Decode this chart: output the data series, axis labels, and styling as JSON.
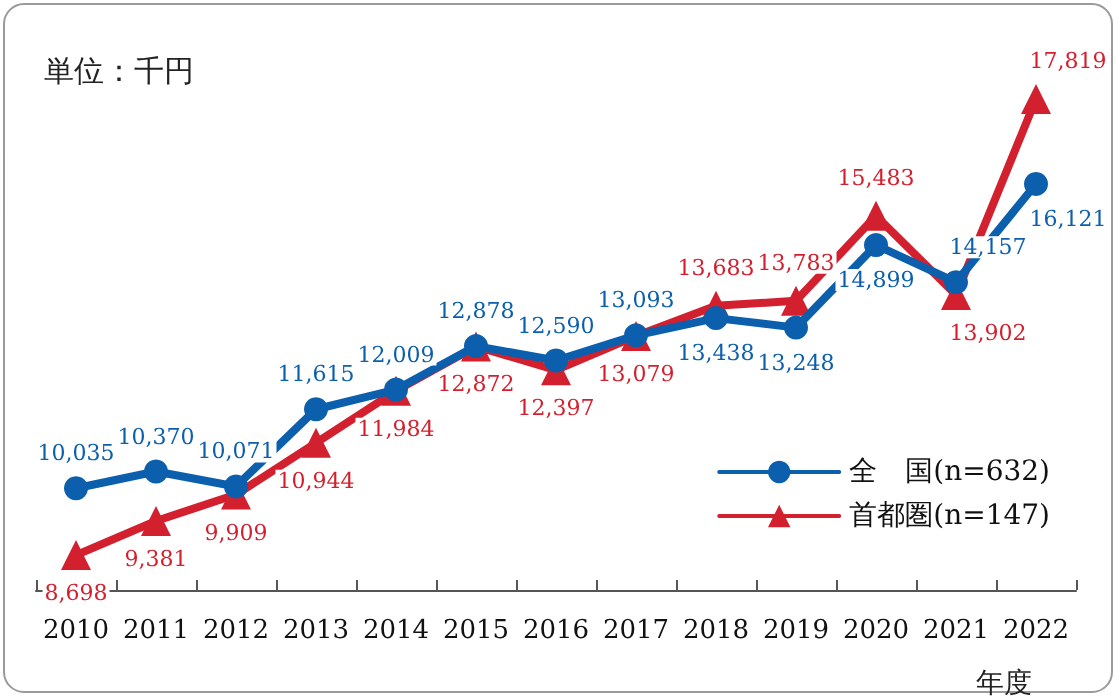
{
  "chart_data": {
    "type": "line",
    "annotations": [
      "単位：千円"
    ],
    "xlabel": "年度",
    "categories": [
      "2010",
      "2011",
      "2012",
      "2013",
      "2014",
      "2015",
      "2016",
      "2017",
      "2018",
      "2019",
      "2020",
      "2021",
      "2022"
    ],
    "series": [
      {
        "name": "全　国(n=632)",
        "color": "#0b5fad",
        "marker": "circle",
        "values": [
          10035,
          10370,
          10071,
          11615,
          12009,
          12878,
          12590,
          13093,
          13438,
          13248,
          14899,
          14157,
          16121
        ],
        "value_labels": [
          "10,035",
          "10,370",
          "10,071",
          "11,615",
          "12,009",
          "12,878",
          "12,590",
          "13,093",
          "13,438",
          "13,248",
          "14,899",
          "14,157",
          "16,121"
        ]
      },
      {
        "name": "首都圏(n=147)",
        "color": "#d3202e",
        "marker": "triangle",
        "values": [
          8698,
          9381,
          9909,
          10944,
          11984,
          12872,
          12397,
          13079,
          13683,
          13783,
          15483,
          13902,
          17819
        ],
        "value_labels": [
          "8,698",
          "9,381",
          "9,909",
          "10,944",
          "11,984",
          "12,872",
          "12,397",
          "13,079",
          "13,683",
          "13,783",
          "15,483",
          "13,902",
          "17,819"
        ]
      }
    ],
    "grid": false,
    "legend": "bottom right",
    "line_style": "solid"
  }
}
